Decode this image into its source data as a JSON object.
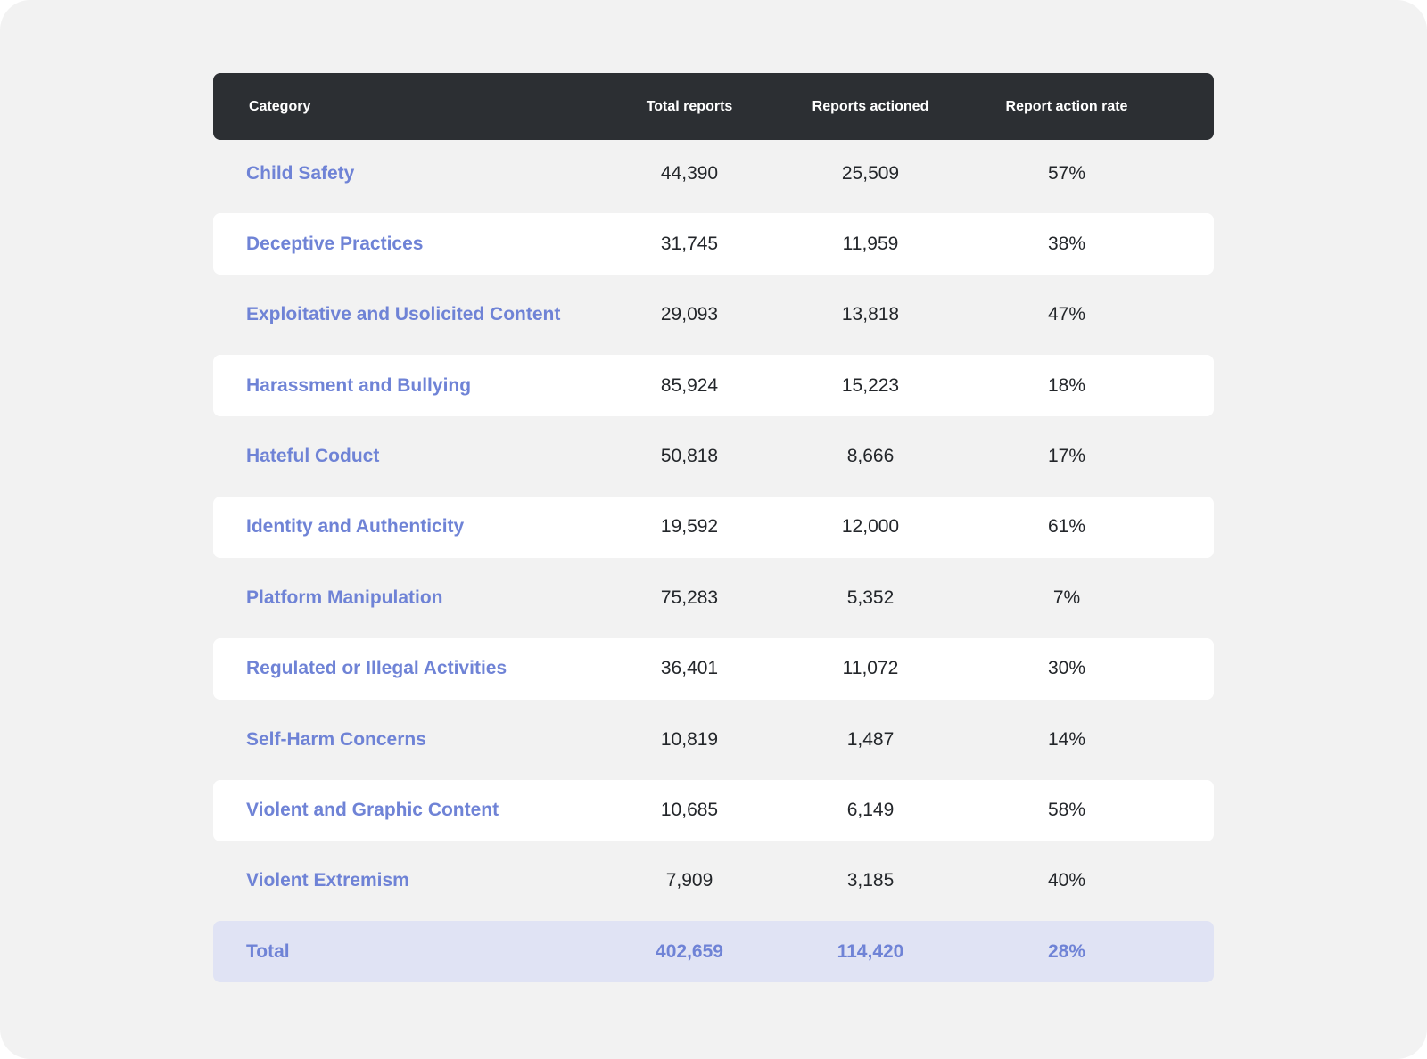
{
  "colors": {
    "background": "#f2f2f2",
    "header_bg": "#2c2f33",
    "category_text": "#6f83d6",
    "total_row_bg": "#e0e3f4"
  },
  "chart_data": {
    "type": "table",
    "columns": [
      "Category",
      "Total reports",
      "Reports actioned",
      "Report action rate"
    ],
    "rows": [
      [
        "Child Safety",
        "44,390",
        "25,509",
        "57%"
      ],
      [
        "Deceptive Practices",
        "31,745",
        "11,959",
        "38%"
      ],
      [
        "Exploitative and Usolicited Content",
        "29,093",
        "13,818",
        "47%"
      ],
      [
        "Harassment and Bullying",
        "85,924",
        "15,223",
        "18%"
      ],
      [
        "Hateful Coduct",
        "50,818",
        "8,666",
        "17%"
      ],
      [
        "Identity and Authenticity",
        "19,592",
        "12,000",
        "61%"
      ],
      [
        "Platform Manipulation",
        "75,283",
        "5,352",
        "7%"
      ],
      [
        "Regulated or Illegal Activities",
        "36,401",
        "11,072",
        "30%"
      ],
      [
        "Self-Harm Concerns",
        "10,819",
        "1,487",
        "14%"
      ],
      [
        "Violent and Graphic Content",
        "10,685",
        "6,149",
        "58%"
      ],
      [
        "Violent Extremism",
        "7,909",
        "3,185",
        "40%"
      ]
    ],
    "total": [
      "Total",
      "402,659",
      "114,420",
      "28%"
    ]
  }
}
